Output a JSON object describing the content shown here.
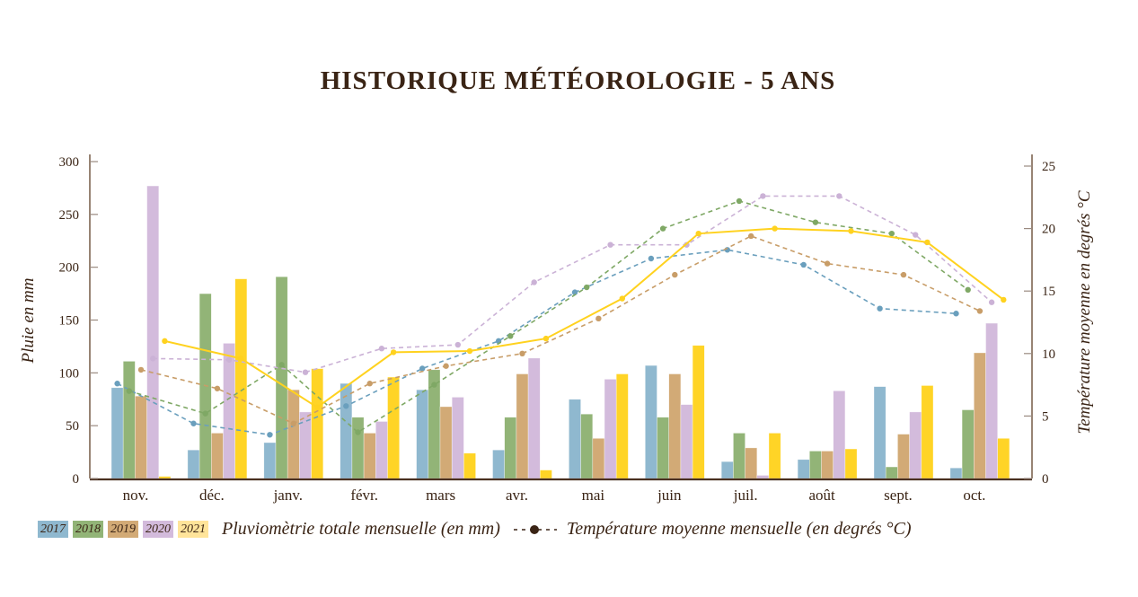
{
  "chart_data": {
    "type": "bar+line",
    "title": "HISTORIQUE MÉTÉOROLOGIE - 5 ANS",
    "categories": [
      "nov.",
      "déc.",
      "janv.",
      "févr.",
      "mars",
      "avr.",
      "mai",
      "juin",
      "juil.",
      "août",
      "sept.",
      "oct."
    ],
    "ylabel_left": "Pluie en mm",
    "ylabel_right": "Température moyenne en degrés °C",
    "ylim_left": [
      0,
      300
    ],
    "yticks_left": [
      "0",
      "50",
      "100",
      "150",
      "200",
      "250",
      "300"
    ],
    "ylim_right": [
      0,
      25
    ],
    "yticks_right": [
      "0",
      "5",
      "10",
      "15",
      "20",
      "25"
    ],
    "grid": false,
    "legend_position": "bottom",
    "rain_label": "Pluviomètrie totale mensuelle (en mm)",
    "temp_label": "Température moyenne mensuelle (en degrés °C)",
    "series": [
      {
        "name": "2017",
        "color": "#8fb8cf",
        "line_style": "dashed",
        "line_color": "#6a9fbd",
        "rain": [
          86,
          27,
          34,
          90,
          84,
          27,
          75,
          107,
          16,
          18,
          87,
          10
        ],
        "temp": [
          7.6,
          4.4,
          3.5,
          5.8,
          8.8,
          11.0,
          14.9,
          17.6,
          18.3,
          17.1,
          13.6,
          13.2
        ]
      },
      {
        "name": "2018",
        "color": "#92b477",
        "line_style": "dashed",
        "line_color": "#7fa865",
        "rain": [
          111,
          175,
          191,
          58,
          103,
          58,
          61,
          58,
          43,
          26,
          11,
          65
        ],
        "temp": [
          7.0,
          5.2,
          9.1,
          3.7,
          7.5,
          11.4,
          15.3,
          20.0,
          22.2,
          20.5,
          19.6,
          15.1
        ]
      },
      {
        "name": "2019",
        "color": "#d2aa76",
        "line_style": "dashed",
        "line_color": "#c89d68",
        "rain": [
          78,
          43,
          84,
          43,
          68,
          99,
          38,
          99,
          29,
          26,
          42,
          119
        ],
        "temp": [
          8.7,
          7.2,
          4.4,
          7.6,
          9.0,
          10.0,
          12.8,
          16.3,
          19.4,
          17.2,
          16.3,
          13.4
        ]
      },
      {
        "name": "2020",
        "color": "#d3bbdc",
        "line_style": "dashed",
        "line_color": "#cbb2d6",
        "rain": [
          277,
          128,
          63,
          54,
          77,
          114,
          94,
          70,
          3,
          83,
          63,
          147
        ],
        "temp": [
          9.6,
          9.5,
          8.5,
          10.4,
          10.7,
          15.7,
          18.7,
          18.7,
          22.6,
          22.6,
          19.5,
          14.1
        ]
      },
      {
        "name": "2021",
        "color": "#ffd426",
        "line_style": "solid",
        "line_color": "#ffd21f",
        "legend_color": "#ffe49a",
        "rain": [
          2,
          189,
          104,
          96,
          24,
          8,
          99,
          126,
          43,
          28,
          88,
          38
        ],
        "temp": [
          11.0,
          9.6,
          5.7,
          10.1,
          10.2,
          11.2,
          14.4,
          19.6,
          20.0,
          19.8,
          18.9,
          14.3
        ]
      }
    ]
  }
}
